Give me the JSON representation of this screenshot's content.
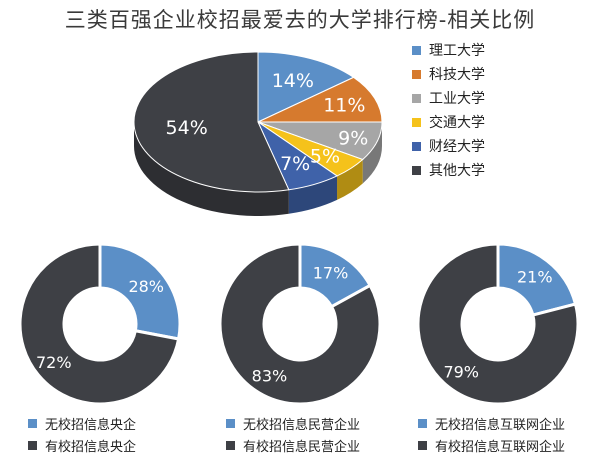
{
  "title": "三类百强企业校招最爱去的大学排行榜-相关比例",
  "colors": {
    "blue": "#5b8fc7",
    "orange": "#d67a2e",
    "gray": "#a6a6a6",
    "yellow": "#f5c21b",
    "navy": "#3f62a9",
    "dark": "#3e4045"
  },
  "chart_data": [
    {
      "type": "pie",
      "title": "三类百强企业校招最爱去的大学排行榜-相关比例",
      "legend_position": "right",
      "slices": [
        {
          "name": "理工大学",
          "value": 14,
          "label": "14%",
          "color": "#5b8fc7"
        },
        {
          "name": "科技大学",
          "value": 11,
          "label": "11%",
          "color": "#d67a2e"
        },
        {
          "name": "工业大学",
          "value": 9,
          "label": "9%",
          "color": "#a6a6a6"
        },
        {
          "name": "交通大学",
          "value": 5,
          "label": "5%",
          "color": "#f5c21b"
        },
        {
          "name": "财经大学",
          "value": 7,
          "label": "7%",
          "color": "#3f62a9"
        },
        {
          "name": "其他大学",
          "value": 54,
          "label": "54%",
          "color": "#3e4045"
        }
      ]
    },
    {
      "type": "pie",
      "legend_position": "bottom",
      "slices": [
        {
          "name": "无校招信息央企",
          "value": 28,
          "label": "28%",
          "color": "#5b8fc7"
        },
        {
          "name": "有校招信息央企",
          "value": 72,
          "label": "72%",
          "color": "#3e4045"
        }
      ]
    },
    {
      "type": "pie",
      "legend_position": "bottom",
      "slices": [
        {
          "name": "无校招信息民营企业",
          "value": 17,
          "label": "17%",
          "color": "#5b8fc7"
        },
        {
          "name": "有校招信息民营企业",
          "value": 83,
          "label": "83%",
          "color": "#3e4045"
        }
      ]
    },
    {
      "type": "pie",
      "legend_position": "bottom",
      "slices": [
        {
          "name": "无校招信息互联网企业",
          "value": 21,
          "label": "21%",
          "color": "#5b8fc7"
        },
        {
          "name": "有校招信息互联网企业",
          "value": 79,
          "label": "79%",
          "color": "#3e4045"
        }
      ]
    }
  ]
}
